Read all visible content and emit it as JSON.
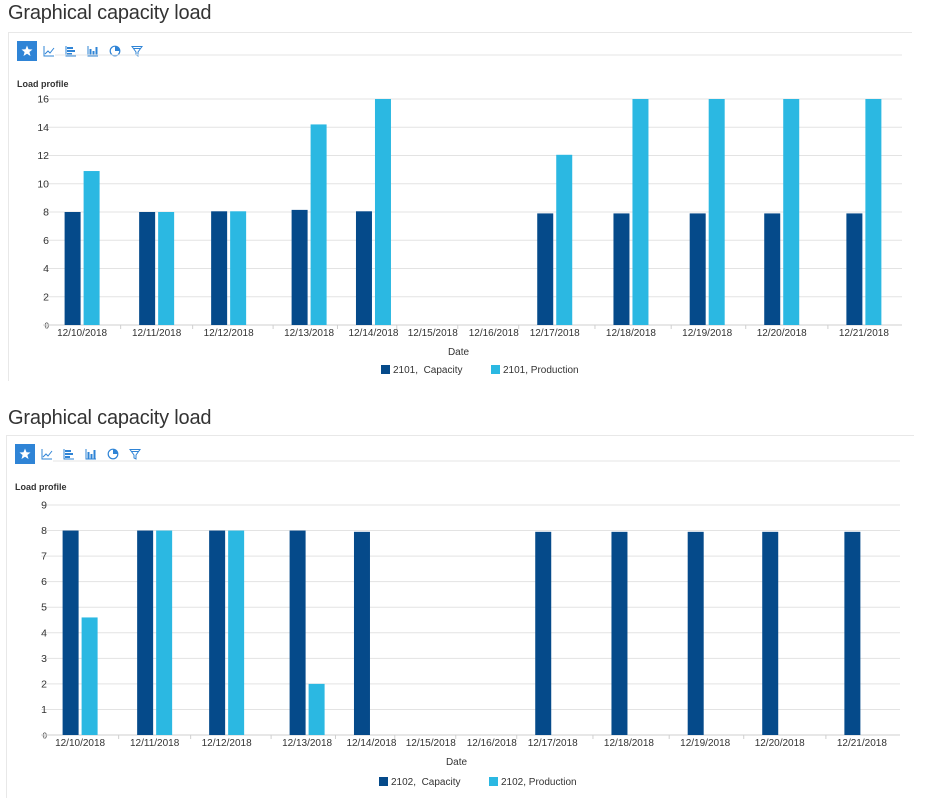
{
  "colors": {
    "capacity": "#054a8a",
    "production": "#2bb8e2",
    "accent": "#2f84d6"
  },
  "toolbar_icons": [
    "star-icon",
    "line-chart-icon",
    "bar-chart-icon",
    "column-chart-icon",
    "pie-chart-icon",
    "funnel-icon"
  ],
  "panels": [
    {
      "title": "Graphical capacity load",
      "subtitle": "Load profile",
      "xlabel": "Date"
    },
    {
      "title": "Graphical capacity load",
      "subtitle": "Load profile",
      "xlabel": "Date"
    }
  ],
  "chart_data": [
    {
      "type": "bar",
      "title": "Load profile",
      "xlabel": "Date",
      "ylabel": "",
      "ylim": [
        0,
        16
      ],
      "yticks": [
        0,
        2,
        4,
        6,
        8,
        10,
        12,
        14,
        16
      ],
      "grid": true,
      "legend_position": "bottom",
      "categories": [
        "12/10/2018",
        "12/11/2018",
        "12/12/2018",
        "12/13/2018",
        "12/14/2018",
        "12/15/2018",
        "12/16/2018",
        "12/17/2018",
        "12/18/2018",
        "12/19/2018",
        "12/20/2018",
        "12/21/2018"
      ],
      "series": [
        {
          "name": "2101,  Capacity",
          "values": [
            8,
            8,
            8.05,
            8.15,
            8.05,
            0,
            0,
            7.9,
            7.9,
            7.9,
            7.9,
            7.9
          ]
        },
        {
          "name": "2101, Production",
          "values": [
            10.9,
            8,
            8.05,
            14.2,
            16,
            0,
            0,
            12.05,
            16,
            16,
            16,
            16
          ]
        }
      ]
    },
    {
      "type": "bar",
      "title": "Load profile",
      "xlabel": "Date",
      "ylabel": "",
      "ylim": [
        0,
        9
      ],
      "yticks": [
        0,
        1,
        2,
        3,
        4,
        5,
        6,
        7,
        8,
        9
      ],
      "grid": true,
      "legend_position": "bottom",
      "categories": [
        "12/10/2018",
        "12/11/2018",
        "12/12/2018",
        "12/13/2018",
        "12/14/2018",
        "12/15/2018",
        "12/16/2018",
        "12/17/2018",
        "12/18/2018",
        "12/19/2018",
        "12/20/2018",
        "12/21/2018"
      ],
      "series": [
        {
          "name": "2102,  Capacity",
          "values": [
            8,
            8,
            8,
            8,
            7.95,
            0,
            0,
            7.95,
            7.95,
            7.95,
            7.95,
            7.95
          ]
        },
        {
          "name": "2102, Production",
          "values": [
            4.6,
            8,
            8,
            2,
            0,
            0,
            0,
            0,
            0,
            0,
            0,
            0
          ]
        }
      ]
    }
  ]
}
